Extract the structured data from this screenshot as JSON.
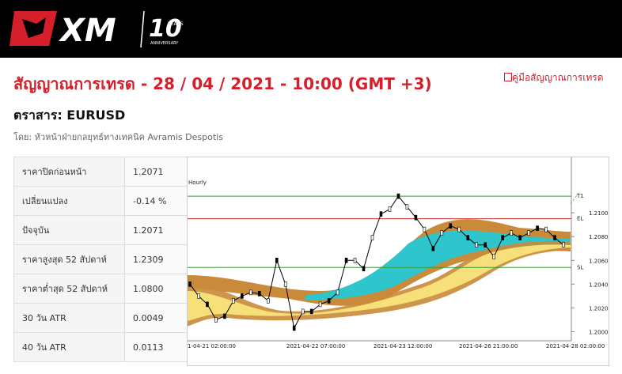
{
  "header": {
    "logo": "XM",
    "anniversary_number": "10",
    "anniversary_years": "YEARS",
    "anniversary_text": "ANNIVERSARY"
  },
  "title": "สัญญาณการเทรด - 28 / 04 / 2021 - 10:00 (GMT +3)",
  "guide_link": "คู่มือสัญญาณการเทรด",
  "instrument": "ตราสาร: EURUSD",
  "author": "โดย: หัวหน้าฝ่ายกลยุทธ์ทางเทคนิค Avramis Despotis",
  "table": {
    "rows": [
      [
        "ราคาปิดก่อนหน้า",
        "1.2071"
      ],
      [
        "เปลี่ยนแปลง",
        "-0.14 %"
      ],
      [
        "ปัจจุบัน",
        "1.2071"
      ],
      [
        "ราคาสูงสุด 52 สัปดาห์",
        "1.2309"
      ],
      [
        "ราคาต่ำสุด 52 สัปดาห์",
        "1.0800"
      ],
      [
        "30 วัน ATR",
        "0.0049"
      ],
      [
        "40 วัน ATR",
        "0.0113"
      ]
    ]
  },
  "chart": {
    "type": "line",
    "title": "Hourly",
    "color": "#000000",
    "ylim": [
      1.1993,
      1.2136
    ],
    "yticks": [
      {
        "value": 1.21,
        "label": "1.2100"
      },
      {
        "value": 1.208,
        "label": "1.2080"
      },
      {
        "value": 1.206,
        "label": "1.2060"
      },
      {
        "value": 1.204,
        "label": "1.2040"
      },
      {
        "value": 1.202,
        "label": "1.2020"
      },
      {
        "value": 1.2,
        "label": "1.2000"
      }
    ],
    "levels": [
      {
        "label": "T1",
        "value": 1.2114,
        "color": "#3a9a3a"
      },
      {
        "label": "EL",
        "value": 1.2095,
        "color": "#d03030"
      },
      {
        "label": "SL",
        "value": 1.2054,
        "color": "#3a9a3a"
      }
    ],
    "x_labels": [
      "1-04-21 02:00:00",
      "2021-04-22 07:00:00",
      "2021-04-23 12:00:00",
      "2021-04-26 21:00:00",
      "2021-04-28 02:00:00"
    ],
    "values": [
      1.204,
      1.203,
      1.2023,
      1.201,
      1.2013,
      1.2026,
      1.203,
      1.2033,
      1.2032,
      1.2026,
      1.206,
      1.204,
      1.2003,
      1.2017,
      1.2017,
      1.2023,
      1.2026,
      1.2033,
      1.206,
      1.206,
      1.2053,
      1.2079,
      1.2099,
      1.2103,
      1.2114,
      1.2105,
      1.2096,
      1.2086,
      1.207,
      1.2083,
      1.2089,
      1.2086,
      1.2079,
      1.2073,
      1.2073,
      1.2063,
      1.2079,
      1.2083,
      1.2079,
      1.2083,
      1.2087,
      1.2086,
      1.2079,
      1.2073
    ]
  }
}
